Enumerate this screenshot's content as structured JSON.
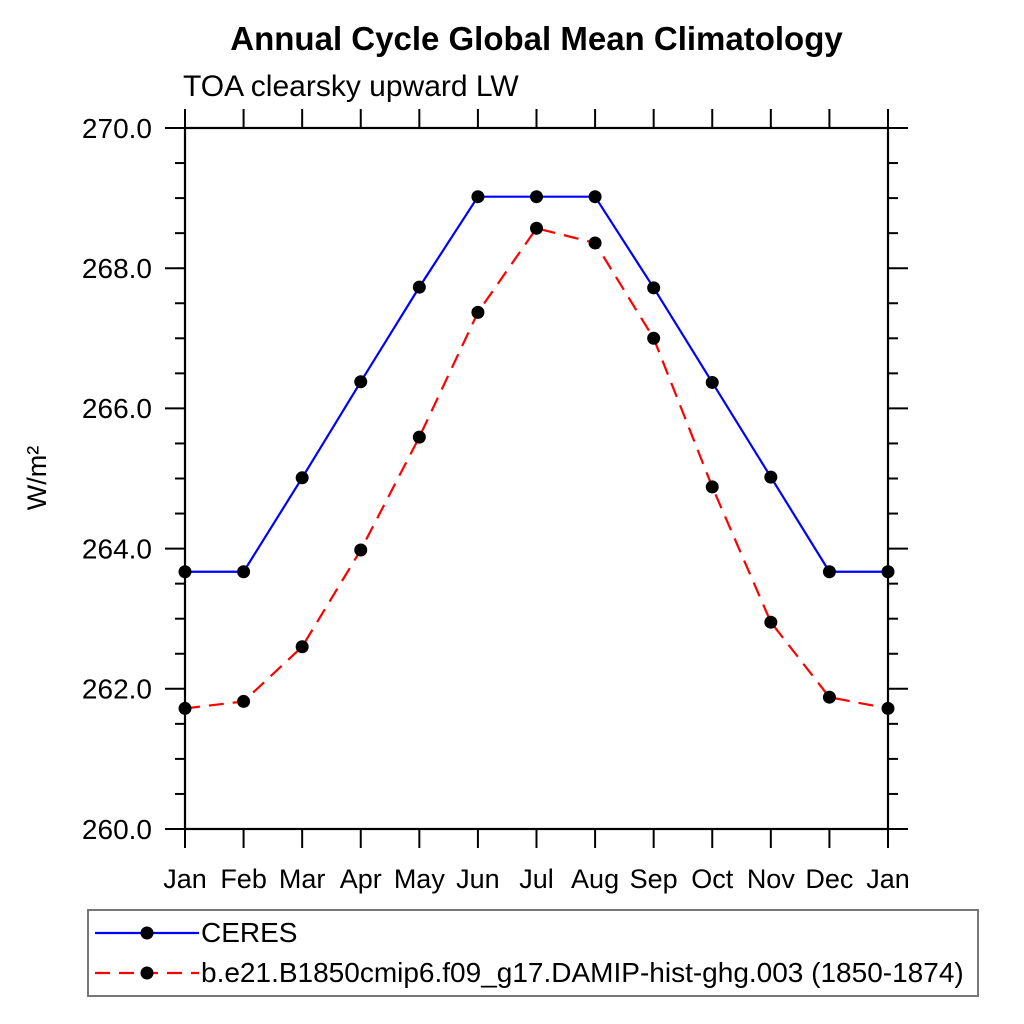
{
  "title": "Annual Cycle Global Mean Climatology",
  "subtitle": "TOA clearsky upward LW",
  "chart_data": {
    "type": "line",
    "title": "Annual Cycle Global Mean Climatology",
    "subtitle": "TOA clearsky upward LW",
    "xlabel": "",
    "ylabel": "W/m²",
    "x_categories": [
      "Jan",
      "Feb",
      "Mar",
      "Apr",
      "May",
      "Jun",
      "Jul",
      "Aug",
      "Sep",
      "Oct",
      "Nov",
      "Dec",
      "Jan"
    ],
    "ylim": [
      260.0,
      270.0
    ],
    "ytick_values": [
      260,
      262,
      264,
      266,
      268,
      270
    ],
    "ytick_labels": [
      "260.0",
      "262.0",
      "264.0",
      "266.0",
      "268.0",
      "270.0"
    ],
    "yminor_step": 0.5,
    "grid": false,
    "legend_position": "bottom-left-box",
    "axis_color": "#000000",
    "series": [
      {
        "name": "CERES",
        "color": "#0000ff",
        "line_style": "solid",
        "marker": "filled-circle",
        "marker_color": "#000000",
        "values": [
          263.67,
          263.67,
          265.01,
          266.38,
          267.73,
          269.02,
          269.02,
          269.02,
          267.72,
          266.37,
          265.02,
          263.67,
          263.67
        ]
      },
      {
        "name": "b.e21.B1850cmip6.f09_g17.DAMIP-hist-ghg.003 (1850-1874)",
        "color": "#ff0000",
        "line_style": "dashed",
        "marker": "filled-circle",
        "marker_color": "#000000",
        "values": [
          261.72,
          261.82,
          262.6,
          263.98,
          265.59,
          267.37,
          268.57,
          268.36,
          267.0,
          264.88,
          262.95,
          261.88,
          261.72
        ]
      }
    ]
  }
}
